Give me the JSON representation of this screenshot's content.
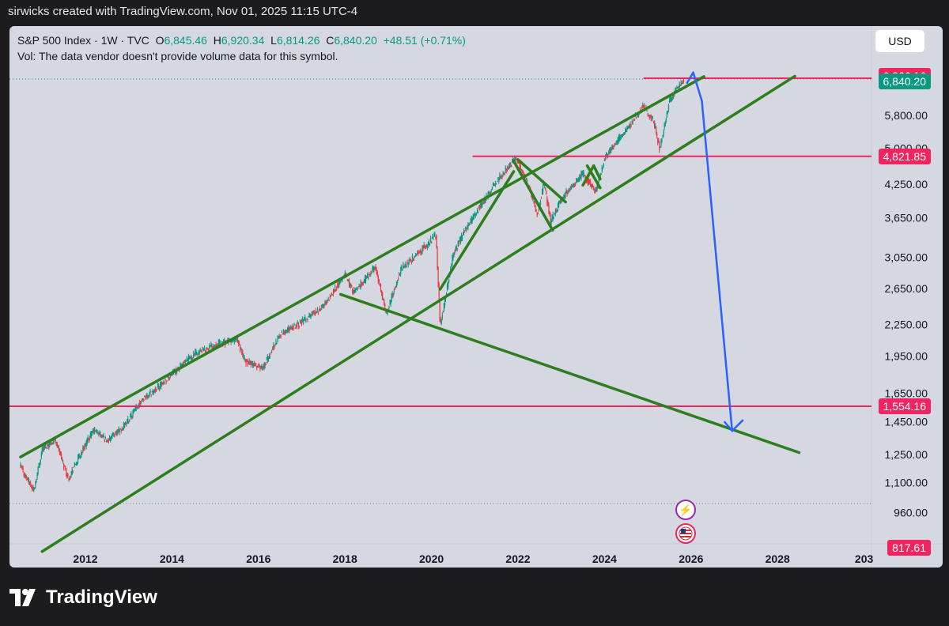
{
  "header": {
    "text": "sirwicks created with TradingView.com, Nov 01, 2025 11:15 UTC-4"
  },
  "legend": {
    "symbol": "S&P 500 Index · 1W · TVC",
    "o_label": "O",
    "o_value": "6,845.46",
    "h_label": "H",
    "h_value": "6,920.34",
    "l_label": "L",
    "l_value": "6,814.26",
    "c_label": "C",
    "c_value": "6,840.20",
    "change": "+48.51 (+0.71%)",
    "vol_note": "Vol: The data vendor doesn't provide volume data for this symbol."
  },
  "currency_button": "USD",
  "brand": "TradingView",
  "colors": {
    "background": "#1c1c1e",
    "plot": "#d5d8e0",
    "up": "#089981",
    "down": "#f23645",
    "channel": "#2e7d1e",
    "level": "#f0245e",
    "projection": "#2962ff"
  },
  "badges": {
    "lightning": "⚡",
    "flag": "🇺🇸"
  },
  "chart_data": {
    "type": "candlestick",
    "symbol": "S&P 500 Index",
    "interval": "1W",
    "scale": "log",
    "x_ticks": [
      "2012",
      "2014",
      "2016",
      "2018",
      "2020",
      "2022",
      "2024",
      "2026",
      "2028",
      "203"
    ],
    "y_ticks": [
      "5,800.00",
      "5,000.00",
      "4,250.00",
      "3,650.00",
      "3,050.00",
      "2,650.00",
      "2,250.00",
      "1,950.00",
      "1,650.00",
      "1,450.00",
      "1,250.00",
      "1,100.00",
      "960.00"
    ],
    "price_labels": [
      {
        "label": "6,866.16",
        "color": "#f0245e"
      },
      {
        "label": "6,840.20",
        "color": "#089981"
      },
      {
        "label": "4,821.85",
        "color": "#f0245e"
      },
      {
        "label": "1,554.16",
        "color": "#f0245e"
      },
      {
        "label": "817.61",
        "color": "#f0245e"
      }
    ],
    "price_path": [
      [
        2010.5,
        1180
      ],
      [
        2010.8,
        1060
      ],
      [
        2011.0,
        1280
      ],
      [
        2011.3,
        1340
      ],
      [
        2011.6,
        1120
      ],
      [
        2011.9,
        1260
      ],
      [
        2012.2,
        1400
      ],
      [
        2012.5,
        1330
      ],
      [
        2012.9,
        1420
      ],
      [
        2013.3,
        1600
      ],
      [
        2013.7,
        1700
      ],
      [
        2014.0,
        1800
      ],
      [
        2014.5,
        1960
      ],
      [
        2015.0,
        2060
      ],
      [
        2015.5,
        2100
      ],
      [
        2015.7,
        1900
      ],
      [
        2016.1,
        1850
      ],
      [
        2016.5,
        2150
      ],
      [
        2017.0,
        2280
      ],
      [
        2017.5,
        2450
      ],
      [
        2018.0,
        2820
      ],
      [
        2018.2,
        2600
      ],
      [
        2018.7,
        2920
      ],
      [
        2018.95,
        2360
      ],
      [
        2019.3,
        2900
      ],
      [
        2019.9,
        3230
      ],
      [
        2020.1,
        3380
      ],
      [
        2020.2,
        2240
      ],
      [
        2020.5,
        3100
      ],
      [
        2020.9,
        3600
      ],
      [
        2021.5,
        4300
      ],
      [
        2021.95,
        4790
      ],
      [
        2022.2,
        4300
      ],
      [
        2022.45,
        3700
      ],
      [
        2022.6,
        4280
      ],
      [
        2022.75,
        3580
      ],
      [
        2023.0,
        3980
      ],
      [
        2023.5,
        4450
      ],
      [
        2023.8,
        4120
      ],
      [
        2024.0,
        4780
      ],
      [
        2024.5,
        5450
      ],
      [
        2024.9,
        6050
      ],
      [
        2025.15,
        5600
      ],
      [
        2025.27,
        4980
      ],
      [
        2025.5,
        6200
      ],
      [
        2025.83,
        6840
      ]
    ],
    "last_close": 6840.2,
    "horizontal_levels": [
      6866.16,
      4821.85,
      1554.16
    ],
    "trend_lines": [
      {
        "from": [
          2010.5,
          1235
        ],
        "to": [
          2026.3,
          6920
        ]
      },
      {
        "from": [
          2011.0,
          805
        ],
        "to": [
          2028.4,
          6930
        ]
      },
      {
        "from": [
          2017.9,
          2580
        ],
        "to": [
          2028.5,
          1260
        ]
      },
      {
        "from": [
          2020.2,
          2640
        ],
        "to": [
          2021.9,
          4500
        ]
      },
      {
        "from": [
          2021.9,
          4720
        ],
        "to": [
          2022.8,
          3450
        ]
      },
      {
        "from": [
          2022.0,
          4750
        ],
        "to": [
          2023.1,
          3920
        ]
      },
      {
        "from": [
          2023.5,
          4230
        ],
        "to": [
          2023.75,
          4620
        ]
      },
      {
        "from": [
          2023.75,
          4620
        ],
        "to": [
          2023.9,
          4350
        ]
      },
      {
        "from": [
          2023.6,
          4620
        ],
        "to": [
          2023.9,
          4180
        ]
      }
    ],
    "projection": [
      [
        2025.9,
        6700
      ],
      [
        2026.05,
        7050
      ],
      [
        2026.25,
        6200
      ],
      [
        2026.95,
        1390
      ]
    ]
  }
}
